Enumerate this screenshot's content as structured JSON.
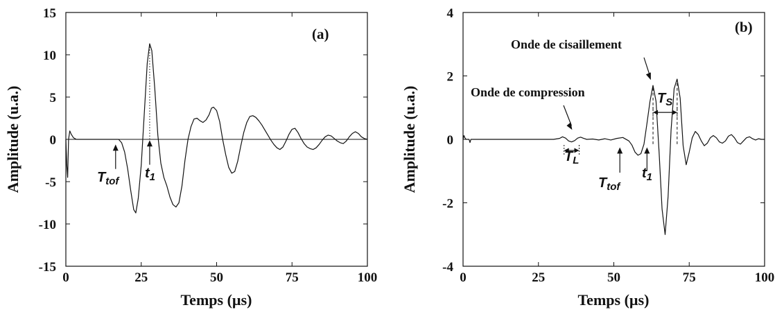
{
  "chart_data": [
    {
      "type": "line",
      "panel_label": "(a)",
      "xlabel": "Temps (µs)",
      "ylabel": "Amplitude (u.a.)",
      "xlim": [
        0,
        100
      ],
      "ylim": [
        -15,
        15
      ],
      "xticks": [
        0,
        25,
        50,
        75,
        100
      ],
      "xtick_labels": [
        "0",
        "25",
        "50",
        "75",
        "100"
      ],
      "yticks": [
        -15,
        -10,
        -5,
        0,
        5,
        10,
        15
      ],
      "ytick_labels": [
        "-15",
        "-10",
        "-5",
        "0",
        "5",
        "10",
        "15"
      ],
      "grid": false,
      "zero_line": true,
      "series": [
        {
          "x": [
            0,
            0.3,
            0.6,
            0.9,
            1.3,
            1.8,
            2.5,
            3.5,
            5,
            8,
            12,
            16,
            17.5,
            18.5,
            19.5,
            20.5,
            21.5,
            22.5,
            23.2,
            24,
            25,
            26,
            27,
            27.8,
            28.5,
            29.5,
            30.5,
            31.5,
            32.5,
            33.5,
            34.5,
            35.5,
            36.5,
            37.5,
            38.5,
            39.5,
            40.5,
            41.5,
            42.5,
            43.5,
            44.5,
            45.5,
            46.5,
            47.5,
            48.3,
            49,
            50,
            51,
            52,
            53,
            54,
            55,
            56,
            57,
            58,
            59,
            60,
            61,
            62,
            63,
            64,
            65,
            66,
            67,
            68,
            69,
            70,
            71,
            72,
            73,
            74,
            75,
            76,
            77,
            78,
            79,
            80,
            81,
            82,
            83,
            84,
            85,
            86,
            87,
            88,
            89,
            90,
            91,
            92,
            93,
            94,
            95,
            96,
            97,
            98,
            99,
            100
          ],
          "y": [
            0,
            -3,
            -4.5,
            0,
            1,
            0.6,
            0.2,
            0,
            0,
            0,
            0,
            0,
            0,
            -0.4,
            -1.5,
            -3.5,
            -6,
            -8.3,
            -8.7,
            -7,
            -3,
            3,
            9,
            11.3,
            10.5,
            6,
            0.5,
            -2.8,
            -4.5,
            -5.5,
            -6.8,
            -7.7,
            -8,
            -7.5,
            -5.5,
            -2.5,
            0,
            1.5,
            2.4,
            2.5,
            2.2,
            2,
            2.3,
            2.9,
            3.7,
            3.8,
            3.4,
            2.1,
            0,
            -1.8,
            -3.3,
            -4,
            -3.8,
            -2.6,
            -0.8,
            0.8,
            2,
            2.7,
            2.8,
            2.6,
            2.2,
            1.7,
            1.1,
            0.5,
            -0.1,
            -0.6,
            -1,
            -1.2,
            -0.9,
            -0.2,
            0.6,
            1.2,
            1.3,
            0.8,
            0.1,
            -0.5,
            -0.9,
            -1.1,
            -1.2,
            -1,
            -0.6,
            -0.1,
            0.3,
            0.5,
            0.4,
            0.1,
            -0.2,
            -0.4,
            -0.5,
            -0.2,
            0.3,
            0.7,
            0.9,
            0.7,
            0.3,
            0.1,
            0
          ]
        }
      ],
      "annotations": [
        {
          "type": "arrow",
          "text_main": "T",
          "text_sub": "tof",
          "x": 16.5,
          "y_tip": -0.6,
          "y_tail": -3.5
        },
        {
          "type": "arrow",
          "text_main": "t",
          "text_sub": "1",
          "x": 27.8,
          "y_tip": -0.1,
          "y_tail": -3.0
        },
        {
          "type": "dotted_vline",
          "x": 27.8,
          "y_from": 0,
          "y_to": 11.3
        }
      ]
    },
    {
      "type": "line",
      "panel_label": "(b)",
      "xlabel": "Temps (µs)",
      "ylabel": "Amplitude (u.a.)",
      "xlim": [
        0,
        100
      ],
      "ylim": [
        -4,
        4
      ],
      "xticks": [
        0,
        25,
        50,
        75,
        100
      ],
      "xtick_labels": [
        "0",
        "25",
        "50",
        "75",
        "100"
      ],
      "yticks": [
        -4,
        -2,
        0,
        2,
        4
      ],
      "ytick_labels": [
        "-4",
        "-2",
        "0",
        "2",
        "4"
      ],
      "grid": false,
      "zero_line": false,
      "series": [
        {
          "x": [
            0,
            0.3,
            0.6,
            1,
            2,
            2.3,
            2.6,
            3,
            5,
            10,
            20,
            30,
            32,
            33,
            34,
            35,
            36,
            37,
            38,
            39,
            40,
            41,
            43,
            45,
            47,
            49,
            51,
            53,
            55,
            56,
            57,
            58,
            59,
            60,
            61,
            62,
            63,
            64,
            65,
            66,
            67,
            68,
            69,
            70,
            71,
            72,
            73,
            74,
            75,
            76,
            77,
            78,
            79,
            80,
            81,
            82,
            83,
            84,
            85,
            86,
            87,
            88,
            89,
            90,
            91,
            92,
            93,
            94,
            95,
            96,
            97,
            98,
            99,
            100
          ],
          "y": [
            0,
            0.12,
            0.05,
            0,
            0,
            -0.1,
            0,
            0,
            0,
            0,
            0,
            0,
            0.03,
            0.08,
            0.04,
            -0.05,
            -0.08,
            -0.04,
            0.04,
            0.07,
            0.03,
            0,
            0.01,
            -0.02,
            0.02,
            -0.02,
            0.03,
            0.06,
            -0.05,
            -0.18,
            -0.4,
            -0.5,
            -0.45,
            -0.15,
            0.5,
            1.2,
            1.7,
            1.2,
            -0.4,
            -2.2,
            -3.0,
            -1.8,
            0.3,
            1.6,
            1.9,
            1.3,
            -0.2,
            -0.8,
            -0.4,
            0.05,
            0.25,
            0.15,
            -0.05,
            -0.2,
            -0.12,
            0.05,
            0.12,
            0.05,
            -0.08,
            -0.12,
            -0.05,
            0.1,
            0.15,
            0.05,
            -0.1,
            -0.15,
            -0.05,
            0.05,
            0.08,
            0.02,
            -0.02,
            0.02,
            0,
            0
          ]
        }
      ],
      "annotations": [
        {
          "type": "text",
          "text": "Onde de cisaillement"
        },
        {
          "type": "text",
          "text": "Onde de compression"
        },
        {
          "type": "arrow",
          "text_main": "T",
          "text_sub": "tof",
          "x": 52,
          "y_tip": -0.25,
          "y_tail": -1.05
        },
        {
          "type": "arrow",
          "text_main": "t",
          "text_sub": "1",
          "x": 61,
          "y_tip": -0.25,
          "y_tail": -1.0
        },
        {
          "type": "interval",
          "text_main": "T",
          "text_sub": "L",
          "x1": 33.5,
          "x2": 38.5
        },
        {
          "type": "interval",
          "text_main": "T",
          "text_sub": "S",
          "x1": 63,
          "x2": 71
        },
        {
          "type": "dashed_vline",
          "x": 63,
          "y_from": -0.15,
          "y_to": 1.7
        },
        {
          "type": "dashed_vline",
          "x": 71,
          "y_from": -0.15,
          "y_to": 1.9
        }
      ]
    }
  ]
}
